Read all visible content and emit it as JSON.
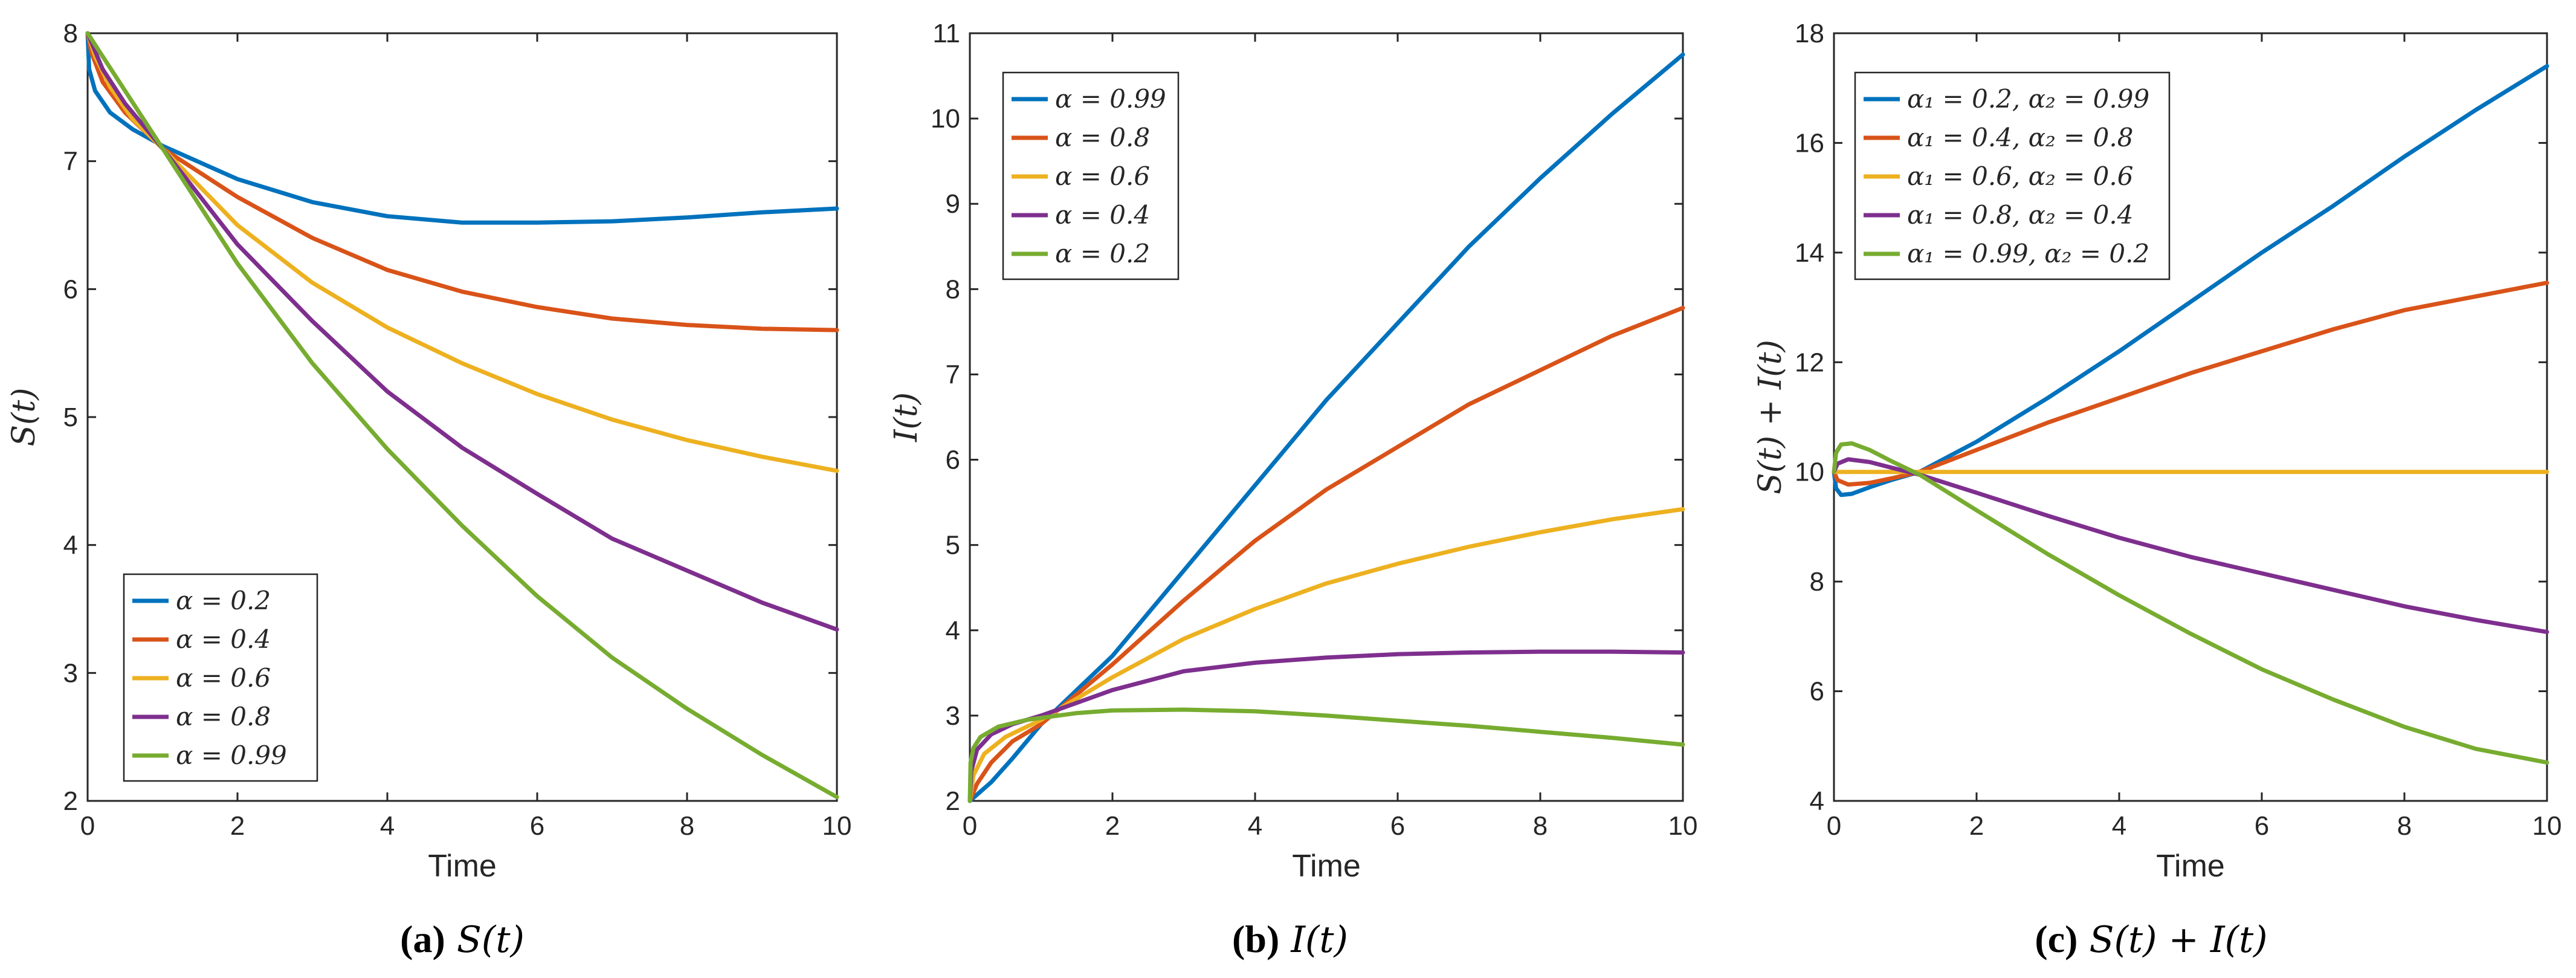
{
  "chart_data": [
    {
      "type": "line",
      "xlabel": "Time",
      "ylabel": "S(t)",
      "caption_label": "(a)",
      "caption_text": "S(t)",
      "xlim": [
        0,
        10
      ],
      "ylim": [
        2,
        8
      ],
      "xticks": [
        "0",
        "2",
        "4",
        "6",
        "8",
        "10"
      ],
      "yticks": [
        "2",
        "3",
        "4",
        "5",
        "6",
        "7",
        "8"
      ],
      "legend_position": "bottom-left",
      "series": [
        {
          "name": "α = 0.2",
          "color": "#0072BD",
          "x": [
            0,
            0.02,
            0.1,
            0.3,
            0.6,
            1,
            2,
            3,
            4,
            5,
            6,
            7,
            8,
            9,
            10
          ],
          "y": [
            8,
            7.72,
            7.55,
            7.38,
            7.25,
            7.12,
            6.86,
            6.68,
            6.57,
            6.52,
            6.52,
            6.53,
            6.56,
            6.6,
            6.63
          ]
        },
        {
          "name": "α = 0.4",
          "color": "#D95319",
          "x": [
            0,
            0.05,
            0.2,
            0.5,
            1,
            2,
            3,
            4,
            5,
            6,
            7,
            8,
            9,
            10
          ],
          "y": [
            8,
            7.85,
            7.62,
            7.38,
            7.1,
            6.72,
            6.4,
            6.15,
            5.98,
            5.86,
            5.77,
            5.72,
            5.69,
            5.68
          ]
        },
        {
          "name": "α = 0.6",
          "color": "#EDB120",
          "x": [
            0,
            0.1,
            0.3,
            0.6,
            1,
            2,
            3,
            4,
            5,
            6,
            7,
            8,
            9,
            10
          ],
          "y": [
            8,
            7.82,
            7.58,
            7.33,
            7.1,
            6.5,
            6.05,
            5.7,
            5.42,
            5.18,
            4.98,
            4.82,
            4.69,
            4.58
          ]
        },
        {
          "name": "α = 0.8",
          "color": "#7E2F8E",
          "x": [
            0,
            0.2,
            0.5,
            1,
            2,
            3,
            4,
            5,
            6,
            7,
            8,
            9,
            10
          ],
          "y": [
            8,
            7.72,
            7.45,
            7.1,
            6.35,
            5.75,
            5.2,
            4.76,
            4.4,
            4.05,
            3.8,
            3.55,
            3.34
          ]
        },
        {
          "name": "α = 0.99",
          "color": "#77AC30",
          "x": [
            0,
            0.5,
            1,
            2,
            3,
            4,
            5,
            6,
            7,
            8,
            9,
            10
          ],
          "y": [
            8,
            7.55,
            7.1,
            6.2,
            5.42,
            4.75,
            4.15,
            3.6,
            3.12,
            2.72,
            2.36,
            2.03
          ]
        }
      ]
    },
    {
      "type": "line",
      "xlabel": "Time",
      "ylabel": "I(t)",
      "caption_label": "(b)",
      "caption_text": "I(t)",
      "xlim": [
        0,
        10
      ],
      "ylim": [
        2,
        11
      ],
      "xticks": [
        "0",
        "2",
        "4",
        "6",
        "8",
        "10"
      ],
      "yticks": [
        "2",
        "3",
        "4",
        "5",
        "6",
        "7",
        "8",
        "9",
        "10",
        "11"
      ],
      "legend_position": "top-left",
      "series": [
        {
          "name": "α = 0.99",
          "color": "#0072BD",
          "x": [
            0,
            0.3,
            0.6,
            1,
            2,
            3,
            4,
            5,
            6,
            7,
            8,
            9,
            10
          ],
          "y": [
            2,
            2.22,
            2.5,
            2.9,
            3.7,
            4.7,
            5.7,
            6.7,
            7.6,
            8.5,
            9.3,
            10.05,
            10.75
          ]
        },
        {
          "name": "α = 0.8",
          "color": "#D95319",
          "x": [
            0,
            0.1,
            0.3,
            0.6,
            1,
            2,
            3,
            4,
            5,
            6,
            7,
            8,
            9,
            10
          ],
          "y": [
            2,
            2.2,
            2.45,
            2.7,
            2.9,
            3.6,
            4.35,
            5.05,
            5.65,
            6.15,
            6.65,
            7.05,
            7.45,
            7.78
          ]
        },
        {
          "name": "α = 0.6",
          "color": "#EDB120",
          "x": [
            0,
            0.05,
            0.2,
            0.5,
            1,
            2,
            3,
            4,
            5,
            6,
            7,
            8,
            9,
            10
          ],
          "y": [
            2,
            2.3,
            2.55,
            2.75,
            2.95,
            3.45,
            3.9,
            4.25,
            4.55,
            4.78,
            4.98,
            5.15,
            5.3,
            5.42
          ]
        },
        {
          "name": "α = 0.4",
          "color": "#7E2F8E",
          "x": [
            0,
            0.02,
            0.1,
            0.3,
            0.6,
            1,
            2,
            3,
            4,
            5,
            6,
            7,
            8,
            9,
            10
          ],
          "y": [
            2,
            2.35,
            2.6,
            2.78,
            2.9,
            3.0,
            3.3,
            3.52,
            3.62,
            3.68,
            3.72,
            3.74,
            3.75,
            3.75,
            3.74
          ]
        },
        {
          "name": "α = 0.2",
          "color": "#77AC30",
          "x": [
            0,
            0.01,
            0.05,
            0.15,
            0.4,
            0.8,
            1.5,
            2,
            3,
            4,
            5,
            6,
            7,
            8,
            9,
            10
          ],
          "y": [
            2,
            2.45,
            2.62,
            2.75,
            2.87,
            2.95,
            3.03,
            3.06,
            3.07,
            3.05,
            3.0,
            2.94,
            2.88,
            2.81,
            2.74,
            2.66
          ]
        }
      ]
    },
    {
      "type": "line",
      "xlabel": "Time",
      "ylabel": "S(t) + I(t)",
      "caption_label": "(c)",
      "caption_text": "S(t) + I(t)",
      "xlim": [
        0,
        10
      ],
      "ylim": [
        4,
        18
      ],
      "xticks": [
        "0",
        "2",
        "4",
        "6",
        "8",
        "10"
      ],
      "yticks": [
        "4",
        "6",
        "8",
        "10",
        "12",
        "14",
        "16",
        "18"
      ],
      "legend_position": "top-left",
      "series": [
        {
          "name": "α₁ = 0.2, α₂ = 0.99",
          "color": "#0072BD",
          "x": [
            0,
            0.03,
            0.1,
            0.25,
            0.5,
            0.8,
            1.2,
            2,
            3,
            4,
            5,
            6,
            7,
            8,
            9,
            10
          ],
          "y": [
            10,
            9.7,
            9.58,
            9.6,
            9.72,
            9.85,
            10.0,
            10.55,
            11.35,
            12.2,
            13.1,
            14.0,
            14.85,
            15.75,
            16.6,
            17.4
          ]
        },
        {
          "name": "α₁ = 0.4, α₂ = 0.8",
          "color": "#D95319",
          "x": [
            0,
            0.05,
            0.2,
            0.5,
            0.8,
            1.2,
            2,
            3,
            4,
            5,
            6,
            7,
            8,
            9,
            10
          ],
          "y": [
            10,
            9.85,
            9.77,
            9.8,
            9.88,
            10.0,
            10.4,
            10.9,
            11.35,
            11.8,
            12.2,
            12.6,
            12.95,
            13.2,
            13.45
          ]
        },
        {
          "name": "α₁ = 0.6, α₂ = 0.6",
          "color": "#EDB120",
          "x": [
            0,
            10
          ],
          "y": [
            10,
            10
          ]
        },
        {
          "name": "α₁ = 0.8, α₂ = 0.4",
          "color": "#7E2F8E",
          "x": [
            0,
            0.05,
            0.2,
            0.5,
            0.8,
            1.2,
            2,
            3,
            4,
            5,
            6,
            7,
            8,
            9,
            10
          ],
          "y": [
            10,
            10.15,
            10.23,
            10.18,
            10.08,
            9.95,
            9.62,
            9.2,
            8.8,
            8.45,
            8.15,
            7.85,
            7.55,
            7.3,
            7.08
          ]
        },
        {
          "name": "α₁ = 0.99, α₂ = 0.2",
          "color": "#77AC30",
          "x": [
            0,
            0.03,
            0.1,
            0.25,
            0.5,
            0.8,
            1.2,
            2,
            3,
            4,
            5,
            6,
            7,
            8,
            9,
            10
          ],
          "y": [
            10,
            10.35,
            10.5,
            10.52,
            10.4,
            10.2,
            9.95,
            9.3,
            8.5,
            7.75,
            7.05,
            6.4,
            5.85,
            5.35,
            4.95,
            4.7
          ]
        }
      ]
    }
  ]
}
